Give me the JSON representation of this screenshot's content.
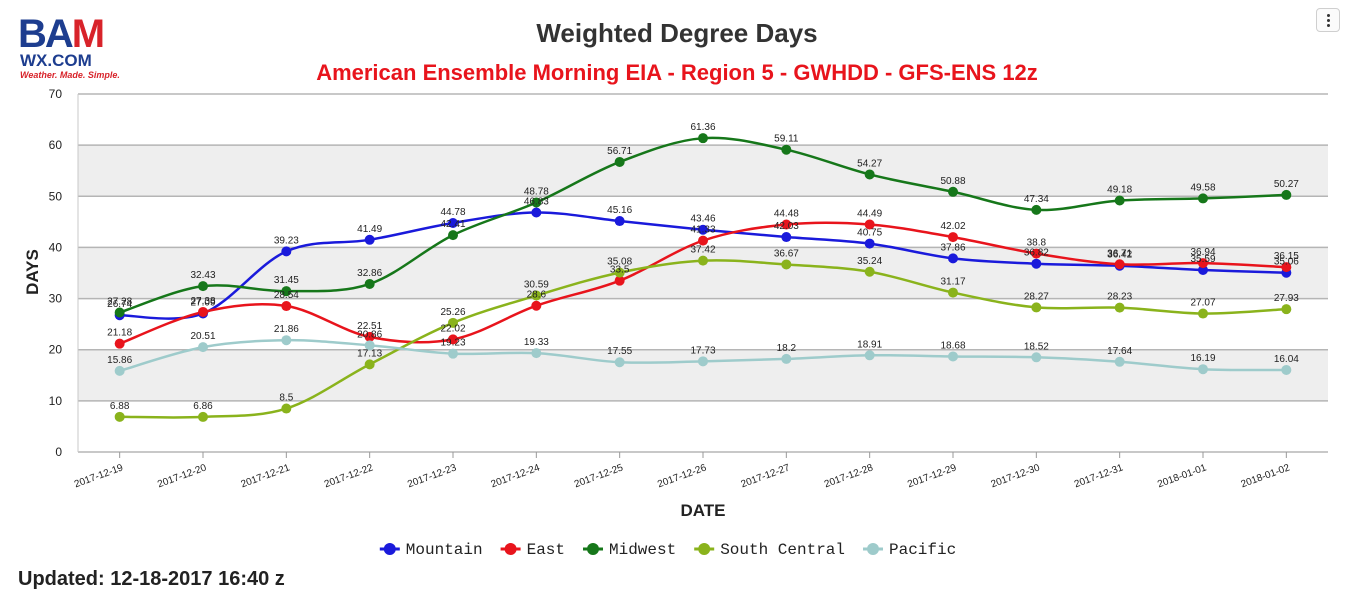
{
  "logo": {
    "line1_a": "BA",
    "line1_b": "M",
    "line2": "WX.COM",
    "line3": "Weather. Made. Simple."
  },
  "updated": "Updated: 12-18-2017 16:40 z",
  "chart_data": {
    "type": "line",
    "title": "Weighted Degree Days",
    "subtitle": "American Ensemble Morning EIA - Region 5 - GWHDD - GFS-ENS 12z",
    "xlabel": "DATE",
    "ylabel": "DAYS",
    "ylim": [
      0,
      70
    ],
    "yticks": [
      0,
      10,
      20,
      30,
      40,
      50,
      60,
      70
    ],
    "grid": true,
    "legend_position": "bottom",
    "categories": [
      "2017-12-19",
      "2017-12-20",
      "2017-12-21",
      "2017-12-22",
      "2017-12-23",
      "2017-12-24",
      "2017-12-25",
      "2017-12-26",
      "2017-12-27",
      "2017-12-28",
      "2017-12-29",
      "2017-12-30",
      "2017-12-31",
      "2018-01-01",
      "2018-01-02"
    ],
    "series": [
      {
        "name": "Mountain",
        "color": "#1a1adb",
        "values": [
          26.74,
          27.09,
          39.23,
          41.49,
          44.78,
          46.83,
          45.16,
          43.46,
          42.03,
          40.75,
          37.86,
          36.82,
          36.42,
          35.59,
          35.06
        ]
      },
      {
        "name": "East",
        "color": "#e8141c",
        "values": [
          21.18,
          27.38,
          28.54,
          22.51,
          22.02,
          28.6,
          33.5,
          41.33,
          44.48,
          44.49,
          42.02,
          38.8,
          36.71,
          36.94,
          36.15
        ]
      },
      {
        "name": "Midwest",
        "color": "#16771a",
        "values": [
          27.28,
          32.43,
          31.45,
          32.86,
          42.41,
          48.78,
          56.71,
          61.36,
          59.11,
          54.27,
          50.88,
          47.34,
          49.18,
          49.58,
          50.27
        ]
      },
      {
        "name": "South Central",
        "color": "#8ab31c",
        "values": [
          6.88,
          6.86,
          8.5,
          17.13,
          25.26,
          30.59,
          35.08,
          37.42,
          36.67,
          35.24,
          31.17,
          28.27,
          28.23,
          27.07,
          27.93
        ]
      },
      {
        "name": "Pacific",
        "color": "#9ecbcb",
        "values": [
          15.86,
          20.51,
          21.86,
          20.86,
          19.23,
          19.33,
          17.55,
          17.73,
          18.2,
          18.91,
          18.68,
          18.52,
          17.64,
          16.19,
          16.04
        ]
      }
    ]
  }
}
